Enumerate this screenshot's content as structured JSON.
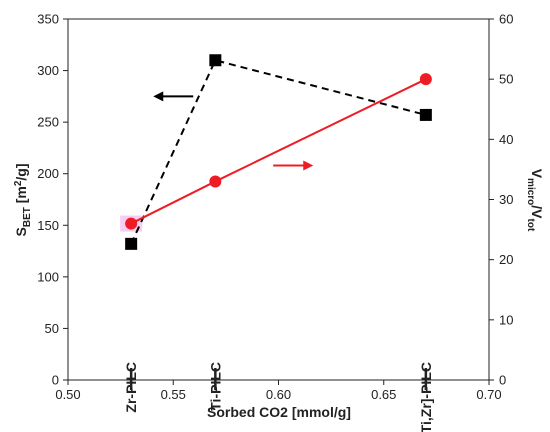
{
  "chart_data": {
    "type": "line",
    "x_axis": {
      "label": "Sorbed CO2 [mmol/g]",
      "range": [
        0.5,
        0.7
      ],
      "ticks": [
        "0.50",
        "0.55",
        "0.60",
        "0.65",
        "0.70"
      ]
    },
    "y_left": {
      "label_main": "S",
      "label_sub": "BET",
      "label_rest": " [m",
      "label_sup": "2",
      "label_end": "/g]",
      "range": [
        0,
        350
      ],
      "ticks": [
        "0",
        "50",
        "100",
        "150",
        "200",
        "250",
        "300",
        "350"
      ]
    },
    "y_right": {
      "label_main": "V",
      "label_sub1": "micro",
      "label_mid": "/V",
      "label_sub2": "tot",
      "range": [
        0,
        60
      ],
      "ticks": [
        "0",
        "10",
        "20",
        "30",
        "40",
        "50",
        "60"
      ]
    },
    "categories": [
      {
        "label": "Zr-PILC",
        "x": 0.53
      },
      {
        "label": "Ti-PILC",
        "x": 0.57
      },
      {
        "label": "[Ti,Zr]-PILC",
        "x": 0.67
      }
    ],
    "series": [
      {
        "axis": "left",
        "style": "dashed",
        "marker": "square",
        "color": "#000000",
        "points": [
          {
            "x": 0.53,
            "y": 132
          },
          {
            "x": 0.57,
            "y": 310
          },
          {
            "x": 0.67,
            "y": 257
          }
        ]
      },
      {
        "axis": "right",
        "style": "solid",
        "marker": "circle",
        "color": "#ee1c24",
        "points": [
          {
            "x": 0.53,
            "y": 26
          },
          {
            "x": 0.57,
            "y": 33
          },
          {
            "x": 0.67,
            "y": 50
          }
        ]
      }
    ],
    "annotations": [
      {
        "type": "arrow",
        "direction": "left",
        "color": "#000000",
        "x": 0.55,
        "y_left": 275
      },
      {
        "type": "arrow",
        "direction": "right",
        "color": "#ee1c24",
        "x": 0.607,
        "y_left": 208
      }
    ],
    "grid": false,
    "legend": "none"
  }
}
